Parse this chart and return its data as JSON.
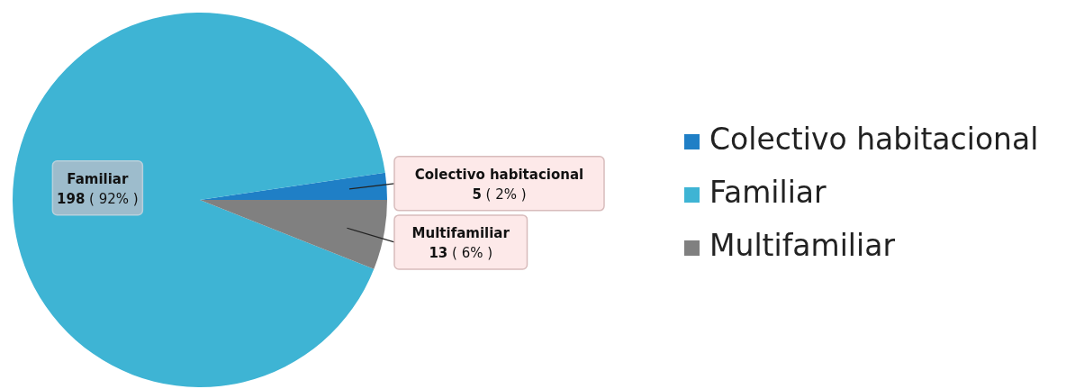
{
  "chart_data": {
    "type": "pie",
    "categories": [
      "Colectivo habitacional",
      "Familiar",
      "Multifamiliar"
    ],
    "values": [
      5,
      198,
      13
    ],
    "colors": [
      "#1f7fc6",
      "#3eb4d4",
      "#808080"
    ],
    "value_labels": [
      "5 ( 2% )",
      "198 ( 92% )",
      "13 ( 6% )"
    ],
    "legend": "right"
  }
}
